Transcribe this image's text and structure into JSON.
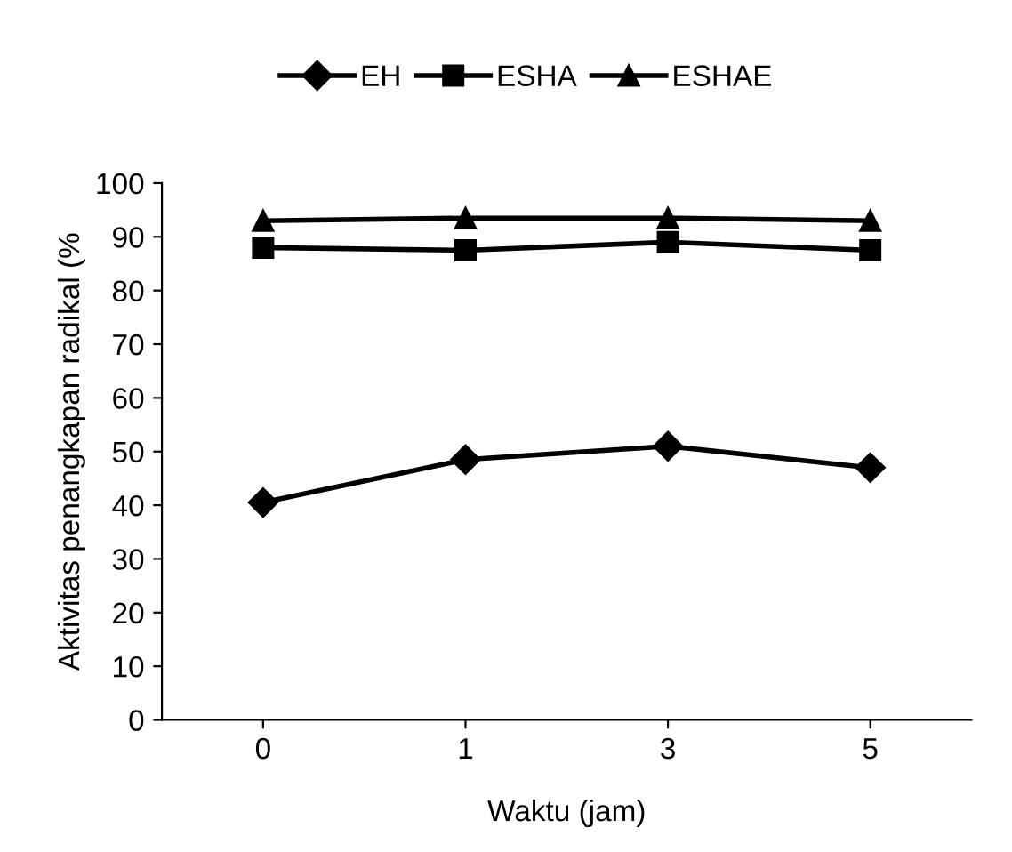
{
  "chart_data": {
    "type": "line",
    "xlabel": "Waktu (jam)",
    "ylabel": "Aktivitas penangkapan radikal (%",
    "categories": [
      "0",
      "1",
      "3",
      "5"
    ],
    "series": [
      {
        "name": "EH",
        "color": "#000000",
        "marker": "diamond",
        "values": [
          40.5,
          48.5,
          51,
          47
        ]
      },
      {
        "name": "ESHA",
        "color": "#000000",
        "marker": "square",
        "values": [
          88,
          87.5,
          89,
          87.5
        ]
      },
      {
        "name": "ESHAE",
        "color": "#000000",
        "marker": "triangle",
        "values": [
          93,
          93.5,
          93.5,
          93
        ]
      }
    ],
    "ylim": [
      0,
      100
    ],
    "yticks": [
      0,
      10,
      20,
      30,
      40,
      50,
      60,
      70,
      80,
      90,
      100
    ],
    "grid": false,
    "legend": "top",
    "line_style": "solid"
  }
}
